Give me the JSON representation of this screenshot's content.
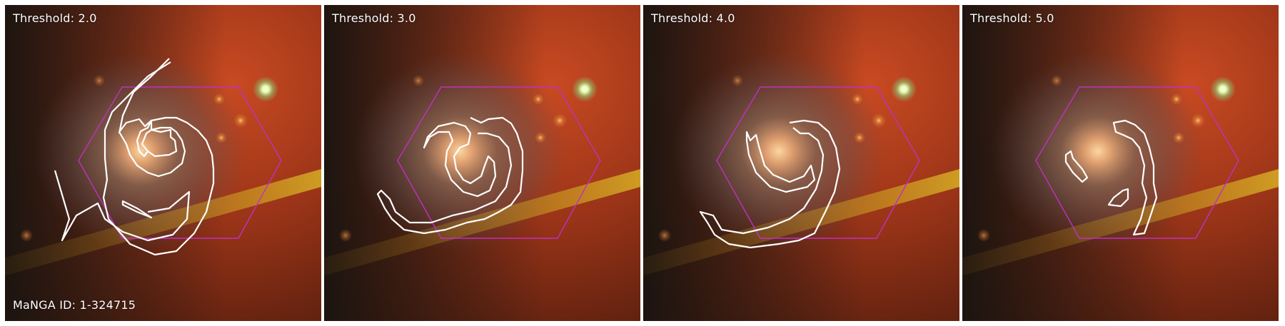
{
  "figure": {
    "panels": [
      {
        "threshold_label": "Threshold: 2.0"
      },
      {
        "threshold_label": "Threshold: 3.0"
      },
      {
        "threshold_label": "Threshold: 4.0"
      },
      {
        "threshold_label": "Threshold: 5.0"
      }
    ],
    "manga_id_label": "MaNGA ID: 1-324715"
  },
  "colors": {
    "hexagon": "#c030c0",
    "contour": "#ffffff",
    "background_red": "#b8401c",
    "galaxy_core": "#f6c68c"
  }
}
